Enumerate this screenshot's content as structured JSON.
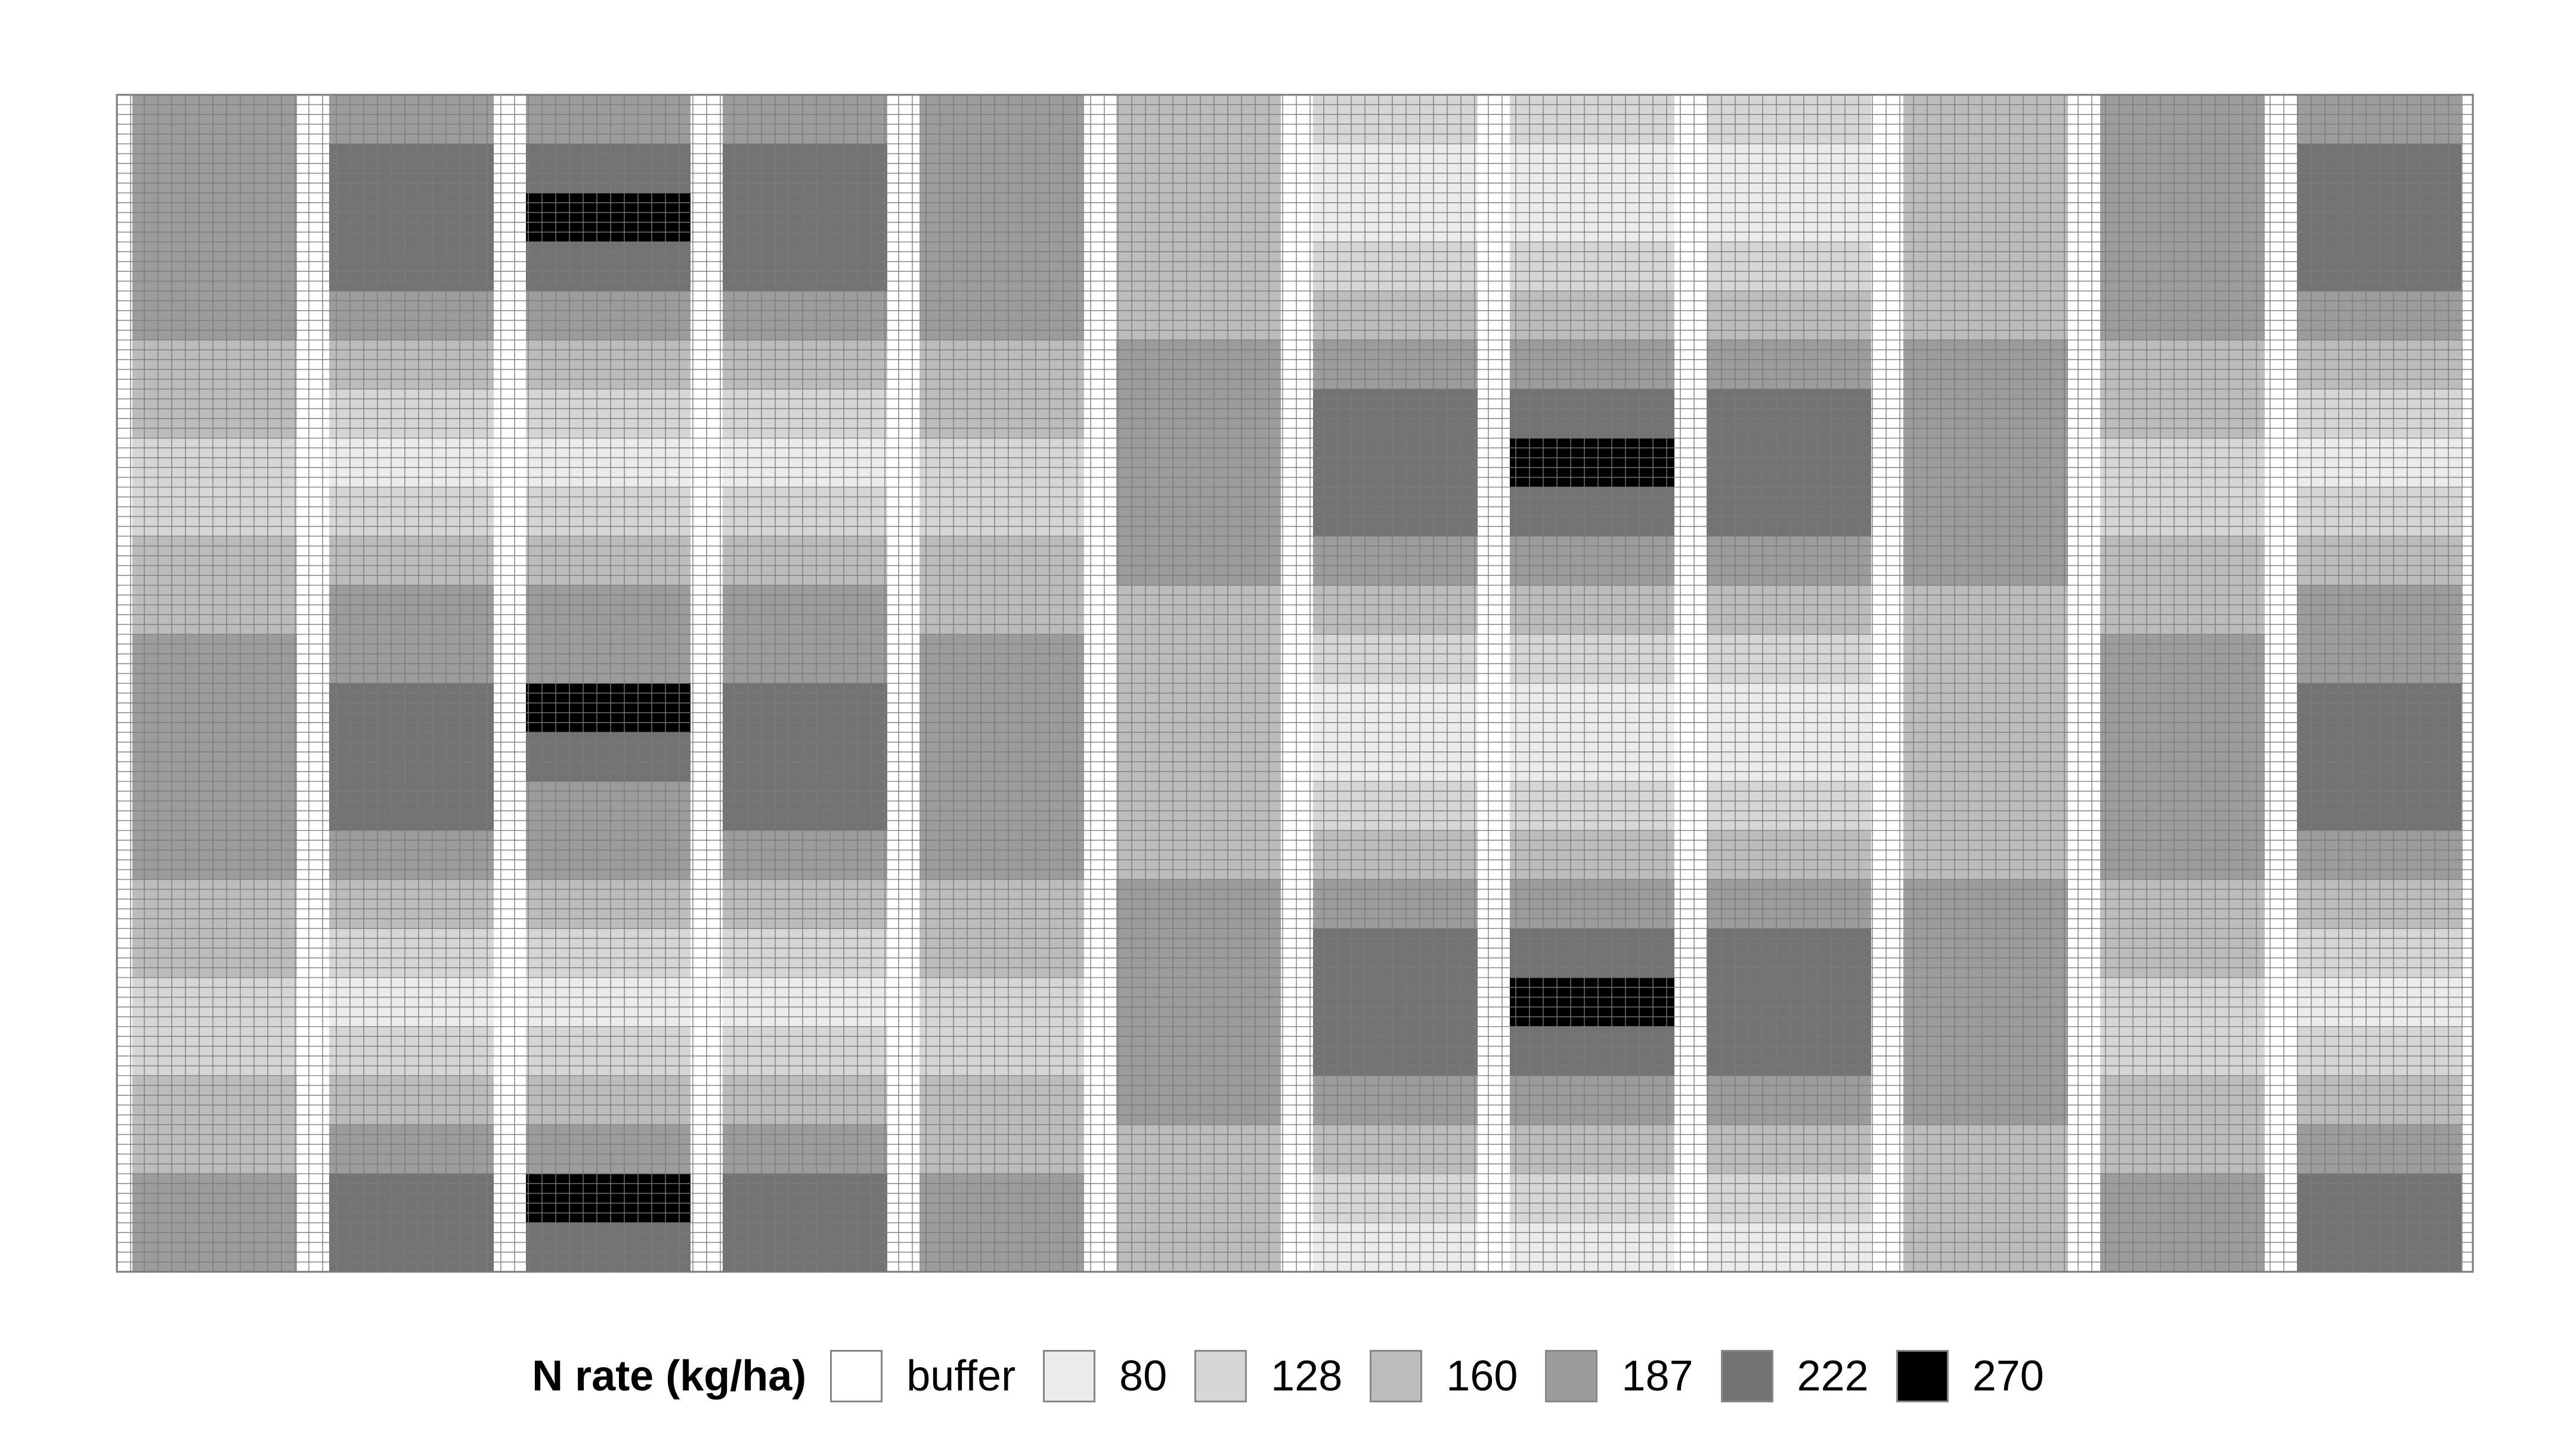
{
  "chart_data": {
    "type": "heatmap",
    "title": "",
    "xlabel": "",
    "ylabel": "",
    "grid": true,
    "legend_position": "bottom",
    "legend": {
      "title": "N rate (kg/ha)",
      "entries": [
        {
          "label": "buffer",
          "color": "#ffffff"
        },
        {
          "label": "80",
          "color": "#ebebeb"
        },
        {
          "label": "128",
          "color": "#d6d6d6"
        },
        {
          "label": "160",
          "color": "#bcbcbc"
        },
        {
          "label": "187",
          "color": "#9c9c9c"
        },
        {
          "label": "222",
          "color": "#737373"
        },
        {
          "label": "270",
          "color": "#000000"
        }
      ]
    },
    "layout": {
      "cols": 142,
      "rows": 71,
      "buffer_columns": [
        0,
        1,
        2,
        3,
        4,
        5,
        6,
        7,
        8,
        9,
        10,
        11,
        12,
        13,
        14,
        15,
        16,
        17,
        18,
        19,
        20,
        21,
        22,
        23
      ],
      "plot_columns": [
        {
          "index": 0,
          "rows": 70
        },
        {
          "index": 1
        },
        {
          "index": 2
        },
        {
          "index": 3
        },
        {
          "index": 4
        }
      ]
    },
    "strips": [
      {
        "name": "strip-1",
        "rates": [
          187,
          187,
          187,
          187,
          187,
          160,
          160,
          128,
          128,
          160,
          160,
          187,
          187,
          187,
          187,
          187,
          160,
          160,
          128,
          128,
          160,
          160,
          187,
          187
        ]
      },
      {
        "name": "strip-2",
        "rates": [
          187,
          222,
          222,
          222,
          187,
          160,
          128,
          80,
          128,
          160,
          187,
          187,
          222,
          222,
          222,
          187,
          160,
          128,
          80,
          128,
          160,
          187,
          222,
          222
        ]
      },
      {
        "name": "strip-3",
        "rates": [
          187,
          222,
          270,
          222,
          187,
          160,
          128,
          80,
          128,
          160,
          187,
          187,
          270,
          222,
          187,
          187,
          160,
          128,
          80,
          128,
          160,
          187,
          270,
          222
        ]
      },
      {
        "name": "strip-4",
        "rates": [
          187,
          222,
          222,
          222,
          187,
          160,
          128,
          80,
          128,
          160,
          187,
          187,
          222,
          222,
          222,
          187,
          160,
          128,
          80,
          128,
          160,
          187,
          222,
          222
        ]
      },
      {
        "name": "strip-5",
        "rates": [
          187,
          187,
          187,
          187,
          187,
          160,
          160,
          128,
          128,
          160,
          160,
          187,
          187,
          187,
          187,
          187,
          160,
          160,
          128,
          128,
          160,
          160,
          187,
          187
        ]
      },
      {
        "name": "strip-6",
        "rates": [
          160,
          160,
          160,
          160,
          160,
          187,
          187,
          187,
          187,
          187,
          160,
          160,
          160,
          160,
          160,
          160,
          187,
          187,
          187,
          187,
          187,
          160,
          160,
          160
        ]
      },
      {
        "name": "strip-7",
        "rates": [
          128,
          80,
          80,
          128,
          160,
          187,
          222,
          222,
          222,
          187,
          160,
          128,
          80,
          80,
          128,
          160,
          187,
          222,
          222,
          222,
          187,
          160,
          128,
          80
        ]
      },
      {
        "name": "strip-8",
        "rates": [
          128,
          80,
          80,
          128,
          160,
          187,
          222,
          270,
          222,
          187,
          160,
          128,
          80,
          80,
          128,
          160,
          187,
          222,
          270,
          222,
          187,
          160,
          128,
          80
        ]
      },
      {
        "name": "strip-9",
        "rates": [
          128,
          80,
          80,
          128,
          160,
          187,
          222,
          222,
          222,
          187,
          160,
          128,
          80,
          80,
          128,
          160,
          187,
          222,
          222,
          222,
          187,
          160,
          128,
          80
        ]
      },
      {
        "name": "strip-10",
        "rates": [
          160,
          160,
          160,
          160,
          160,
          187,
          187,
          187,
          187,
          187,
          160,
          160,
          160,
          160,
          160,
          160,
          187,
          187,
          187,
          187,
          187,
          160,
          160,
          160
        ]
      },
      {
        "name": "strip-11",
        "rates": [
          187,
          187,
          187,
          187,
          187,
          160,
          160,
          128,
          128,
          160,
          160,
          187,
          187,
          187,
          187,
          187,
          160,
          160,
          128,
          128,
          160,
          160,
          187,
          187
        ]
      },
      {
        "name": "strip-12",
        "rates": [
          187,
          222,
          222,
          222,
          187,
          160,
          128,
          80,
          128,
          160,
          187,
          187,
          222,
          222,
          222,
          187,
          160,
          128,
          80,
          128,
          160,
          187,
          222,
          222
        ]
      }
    ]
  }
}
